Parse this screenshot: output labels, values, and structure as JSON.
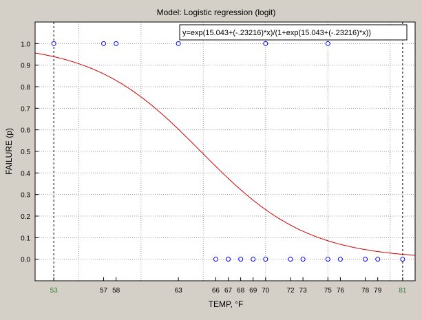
{
  "chart_data": {
    "type": "scatter",
    "title": "Model: Logistic regression (logit)",
    "xlabel": "TEMP, °F",
    "ylabel": "FAILURE (p)",
    "xlim": [
      51.5,
      82.0
    ],
    "ylim": [
      -0.1,
      1.1
    ],
    "grid": true,
    "x_ticks": [
      53,
      57,
      58,
      63,
      66,
      67,
      68,
      69,
      70,
      72,
      73,
      75,
      76,
      78,
      79,
      81
    ],
    "x_tick_labels": [
      "53",
      "57",
      "58",
      "63",
      "66",
      "67",
      "68",
      "69",
      "70",
      "72",
      "73",
      "75",
      "76",
      "78",
      "79",
      "81"
    ],
    "x_tick_colors": {
      "53": "#2e7d32",
      "81": "#2e7d32"
    },
    "y_ticks": [
      0.0,
      0.1,
      0.2,
      0.3,
      0.4,
      0.5,
      0.6,
      0.7,
      0.8,
      0.9,
      1.0
    ],
    "y_tick_labels": [
      "0.0",
      "0.1",
      "0.2",
      "0.3",
      "0.4",
      "0.5",
      "0.6",
      "0.7",
      "0.8",
      "0.9",
      "1.0"
    ],
    "vertical_reference_lines": [
      53,
      81
    ],
    "series": [
      {
        "points": [
          [
            53,
            1
          ],
          [
            57,
            1
          ],
          [
            58,
            1
          ],
          [
            63,
            1
          ],
          [
            70,
            1
          ],
          [
            75,
            1
          ],
          [
            66,
            0
          ],
          [
            67,
            0
          ],
          [
            68,
            0
          ],
          [
            69,
            0
          ],
          [
            70,
            0
          ],
          [
            72,
            0
          ],
          [
            73,
            0
          ],
          [
            75,
            0
          ],
          [
            76,
            0
          ],
          [
            78,
            0
          ],
          [
            79,
            0
          ],
          [
            81,
            0
          ]
        ],
        "marker": "circle-open",
        "color": "#0000ff"
      }
    ],
    "fit": {
      "equation": "y=exp(15.043+(-.23216)*x)/(1+exp(15.043+(-.23216)*x))",
      "intercept": 15.043,
      "slope": -0.23216,
      "color": "#d00000"
    }
  }
}
